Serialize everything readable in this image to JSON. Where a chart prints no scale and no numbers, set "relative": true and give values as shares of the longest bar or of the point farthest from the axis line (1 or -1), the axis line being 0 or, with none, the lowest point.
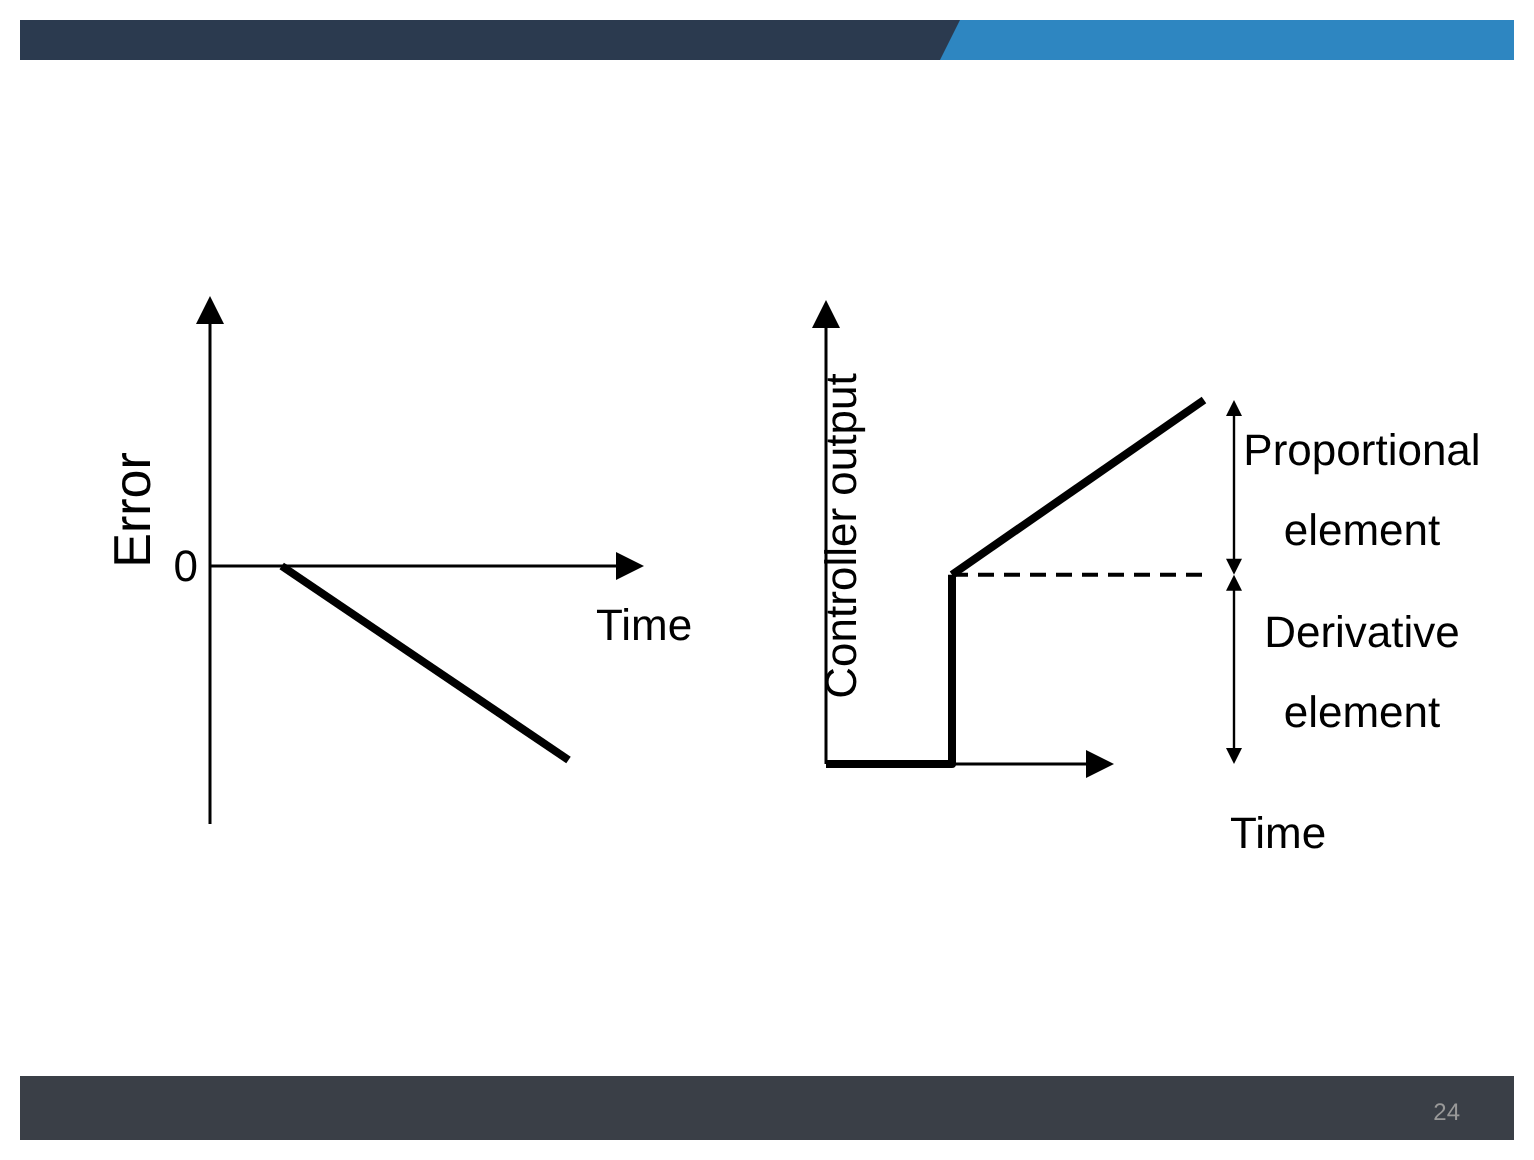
{
  "chart_data": [
    {
      "type": "line",
      "relative": true,
      "ylabel": "Error",
      "xlabel": "Time",
      "categories": [
        null,
        null,
        null
      ],
      "annotations": [
        "0"
      ],
      "series": [
        {
          "color": "#000000",
          "values": [
            0,
            -0.5,
            -1
          ]
        }
      ]
    },
    {
      "type": "line",
      "relative": true,
      "ylabel": "Controller output",
      "xlabel": "Time",
      "categories": [
        null,
        null,
        null,
        null
      ],
      "annotations": [
        "Proportional element",
        "Derivative element",
        "24"
      ],
      "series": [
        {
          "type": "step",
          "color": "#000000",
          "values": [
            0,
            0.52,
            null,
            null
          ]
        },
        {
          "color": "#000000",
          "values": [
            null,
            0.52,
            0.76,
            1
          ]
        },
        {
          "color": "#000000",
          "line_style": "dashed",
          "values": [
            null,
            0.52,
            0.52,
            0.52
          ]
        }
      ]
    }
  ]
}
